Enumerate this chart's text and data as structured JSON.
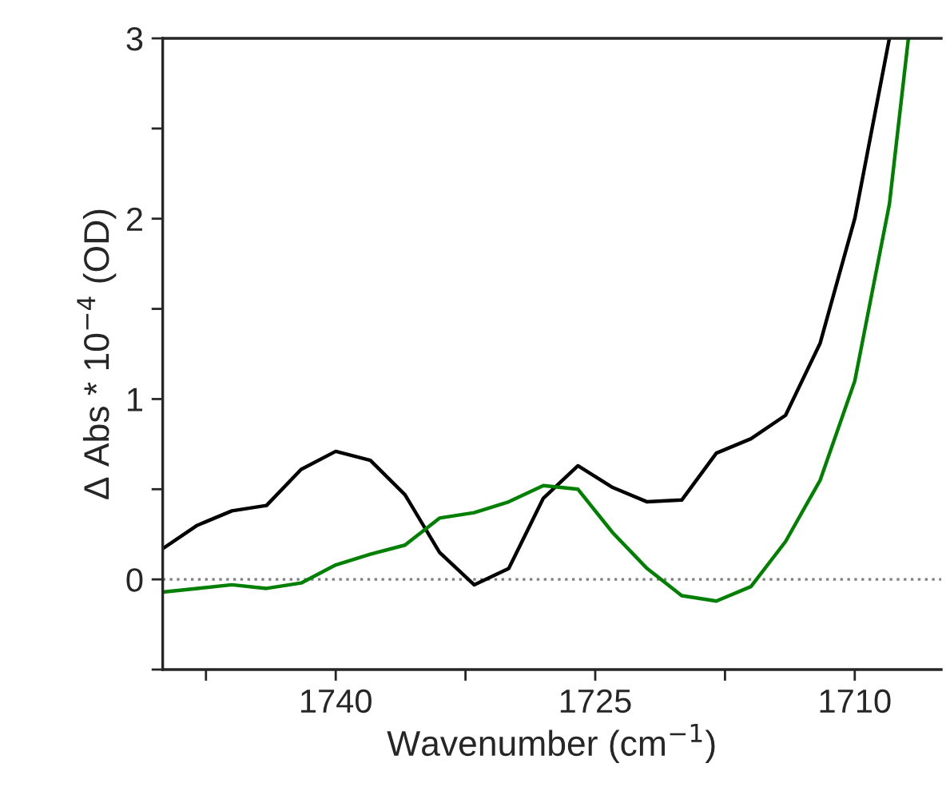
{
  "chart_data": {
    "type": "line",
    "xlabel": "Wavenumber (cm$^{−1}$)",
    "ylabel": "Δ Abs * 10$^{−4}$ (OD)",
    "xlim": [
      1750,
      1705
    ],
    "ylim": [
      -0.5,
      3
    ],
    "xticks": [
      {
        "value": 1747.5,
        "label": null
      },
      1740,
      {
        "value": 1732.5,
        "label": null
      },
      1725,
      {
        "value": 1717.5,
        "label": null
      },
      1710
    ],
    "yticks": [
      {
        "value": -0.5,
        "label": null
      },
      0,
      {
        "value": 0.5,
        "label": null
      },
      1,
      {
        "value": 1.5,
        "label": null
      },
      2,
      {
        "value": 2.5,
        "label": null
      },
      3
    ],
    "grid": false,
    "legend": false,
    "marker": "none",
    "line_style": "solid",
    "ref_lines": [
      {
        "axis": "y",
        "value": 0,
        "label": null,
        "color": "#808080",
        "line_style": "dotted"
      }
    ],
    "series": [
      {
        "color": "#000000",
        "x": [
          1750,
          1748,
          1746,
          1744,
          1742,
          1740,
          1738,
          1736,
          1734,
          1732,
          1730,
          1728,
          1726,
          1724,
          1722,
          1720,
          1718,
          1716,
          1714,
          1712,
          1710,
          1708
        ],
        "values": [
          0.17,
          0.3,
          0.38,
          0.41,
          0.61,
          0.71,
          0.66,
          0.47,
          0.15,
          -0.03,
          0.06,
          0.45,
          0.63,
          0.51,
          0.43,
          0.44,
          0.7,
          0.78,
          0.91,
          1.31,
          2.0,
          3.0
        ]
      },
      {
        "color": "#008000",
        "x": [
          1750,
          1748,
          1746,
          1744,
          1742,
          1740,
          1738,
          1736,
          1734,
          1732,
          1730,
          1728,
          1726,
          1724,
          1722,
          1720,
          1718,
          1716,
          1714,
          1712,
          1710,
          1708,
          1706.9
        ],
        "values": [
          -0.07,
          -0.05,
          -0.03,
          -0.05,
          -0.02,
          0.08,
          0.14,
          0.19,
          0.34,
          0.37,
          0.43,
          0.52,
          0.5,
          0.26,
          0.06,
          -0.09,
          -0.12,
          -0.04,
          0.21,
          0.55,
          1.1,
          2.08,
          3.0
        ]
      }
    ]
  }
}
